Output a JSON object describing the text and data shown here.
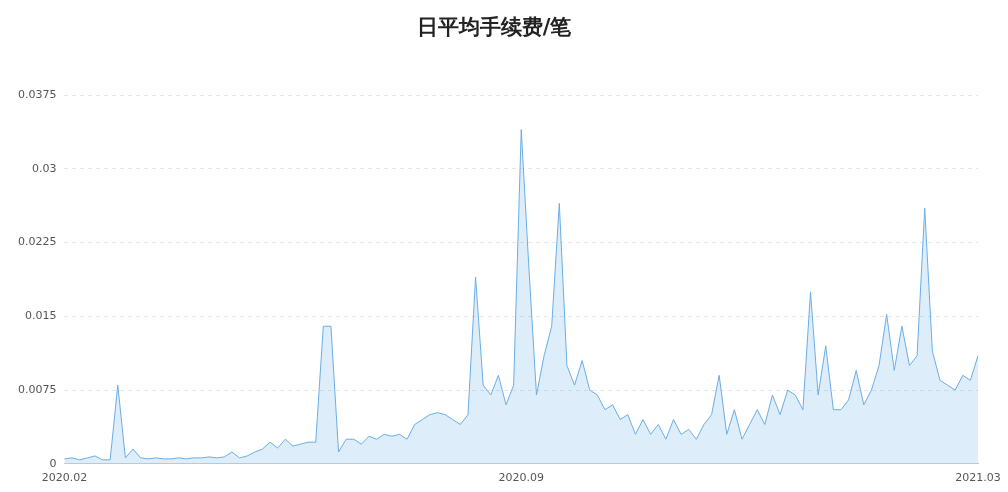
{
  "chart_data": {
    "type": "area",
    "title": "日平均手续费/笔",
    "categories": [
      "2020.02",
      null,
      null,
      null,
      null,
      null,
      null,
      null,
      null,
      null,
      null,
      null,
      null,
      null,
      null,
      null,
      null,
      null,
      null,
      null,
      null,
      null,
      null,
      null,
      null,
      null,
      null,
      null,
      null,
      null,
      null,
      null,
      null,
      null,
      null,
      null,
      null,
      null,
      null,
      null,
      null,
      null,
      null,
      null,
      null,
      null,
      null,
      null,
      null,
      null,
      null,
      null,
      null,
      null,
      null,
      null,
      null,
      null,
      null,
      null,
      "2020.09",
      null,
      null,
      null,
      null,
      null,
      null,
      null,
      null,
      null,
      null,
      null,
      null,
      null,
      null,
      null,
      null,
      null,
      null,
      null,
      null,
      null,
      null,
      null,
      null,
      null,
      null,
      null,
      null,
      null,
      null,
      null,
      null,
      null,
      null,
      null,
      null,
      null,
      null,
      null,
      null,
      null,
      null,
      null,
      null,
      null,
      null,
      null,
      null,
      null,
      null,
      null,
      null,
      null,
      null,
      null,
      null,
      null,
      null,
      null,
      "2021.03"
    ],
    "series": [
      {
        "color": "#6aaee6",
        "values": [
          0.0005,
          0.0006,
          0.0004,
          0.0006,
          0.0008,
          0.0004,
          0.0004,
          0.008,
          0.0006,
          0.0015,
          0.0006,
          0.0005,
          0.0006,
          0.0005,
          0.0005,
          0.0006,
          0.0005,
          0.0006,
          0.0006,
          0.0007,
          0.0006,
          0.0007,
          0.0012,
          0.0006,
          0.0008,
          0.0012,
          0.0015,
          0.0022,
          0.0016,
          0.0025,
          0.0018,
          0.002,
          0.0022,
          0.0022,
          0.014,
          0.014,
          0.0012,
          0.0025,
          0.0025,
          0.002,
          0.0028,
          0.0025,
          0.003,
          0.0028,
          0.003,
          0.0025,
          0.004,
          0.0045,
          0.005,
          0.0052,
          0.005,
          0.0045,
          0.004,
          0.005,
          0.019,
          0.008,
          0.007,
          0.009,
          0.006,
          0.008,
          0.034,
          0.02,
          0.007,
          0.011,
          0.014,
          0.0265,
          0.01,
          0.008,
          0.0105,
          0.0075,
          0.007,
          0.0055,
          0.006,
          0.0045,
          0.005,
          0.003,
          0.0045,
          0.003,
          0.004,
          0.0025,
          0.0045,
          0.003,
          0.0035,
          0.0025,
          0.004,
          0.005,
          0.009,
          0.003,
          0.0055,
          0.0025,
          0.004,
          0.0055,
          0.004,
          0.007,
          0.005,
          0.0075,
          0.007,
          0.0055,
          0.0175,
          0.007,
          0.012,
          0.0055,
          0.0055,
          0.0065,
          0.0095,
          0.006,
          0.0075,
          0.01,
          0.0152,
          0.0095,
          0.014,
          0.01,
          0.011,
          0.026,
          0.0115,
          0.0085,
          0.008,
          0.0075,
          0.009,
          0.0085,
          0.011
        ]
      }
    ],
    "ylim": [
      0,
      0.0375
    ],
    "yticks": [
      0,
      0.0075,
      0.015,
      0.0225,
      0.03,
      0.0375
    ],
    "grid": "y",
    "legend": false,
    "marker": "none"
  }
}
